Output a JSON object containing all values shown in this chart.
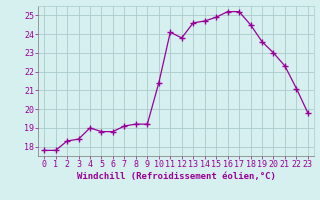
{
  "x": [
    0,
    1,
    2,
    3,
    4,
    5,
    6,
    7,
    8,
    9,
    10,
    11,
    12,
    13,
    14,
    15,
    16,
    17,
    18,
    19,
    20,
    21,
    22,
    23
  ],
  "y": [
    17.8,
    17.8,
    18.3,
    18.4,
    19.0,
    18.8,
    18.8,
    19.1,
    19.2,
    19.2,
    21.4,
    24.1,
    23.8,
    24.6,
    24.7,
    24.9,
    25.2,
    25.2,
    24.5,
    23.6,
    23.0,
    22.3,
    21.1,
    19.8
  ],
  "line_color": "#990099",
  "marker": "+",
  "marker_size": 4,
  "bg_color": "#d5f0ee",
  "grid_color": "#aacccc",
  "xlabel": "Windchill (Refroidissement éolien,°C)",
  "ylim": [
    17.5,
    25.5
  ],
  "xlim": [
    -0.5,
    23.5
  ],
  "yticks": [
    18,
    19,
    20,
    21,
    22,
    23,
    24,
    25
  ],
  "xticks": [
    0,
    1,
    2,
    3,
    4,
    5,
    6,
    7,
    8,
    9,
    10,
    11,
    12,
    13,
    14,
    15,
    16,
    17,
    18,
    19,
    20,
    21,
    22,
    23
  ],
  "label_color": "#990099",
  "tick_color": "#990099",
  "tick_fontsize": 6.0,
  "xlabel_fontsize": 6.5,
  "spine_color": "#777777",
  "linewidth": 0.9,
  "markeredgewidth": 1.0
}
